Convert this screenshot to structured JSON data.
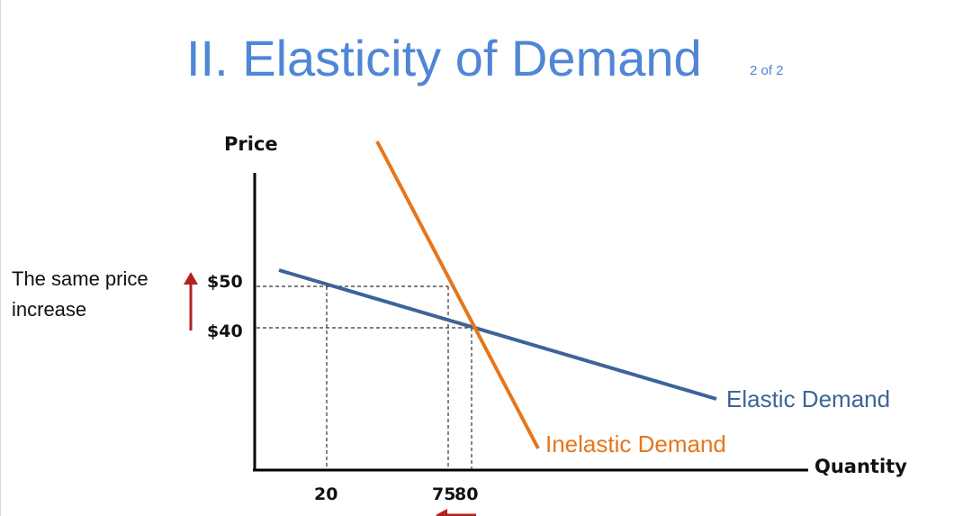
{
  "slide": {
    "title": "II. Elasticity of Demand",
    "subtitle": "2 of 2",
    "note_line1": "The same price",
    "note_line2": "increase"
  },
  "colors": {
    "title": "#4f86d6",
    "elastic": "#3d6499",
    "inelastic": "#e6761b",
    "arrow": "#b22222",
    "axis": "#000000"
  },
  "chart_data": {
    "type": "line",
    "xlabel": "Quantity",
    "ylabel": "Price",
    "x_ticks": [
      "20",
      "75",
      "80"
    ],
    "y_ticks": [
      "$50",
      "$40"
    ],
    "series": [
      {
        "name": "Elastic Demand",
        "points": [
          {
            "x": 20,
            "y": 50
          },
          {
            "x": 80,
            "y": 40
          }
        ]
      },
      {
        "name": "Inelastic Demand",
        "points": [
          {
            "x": 75,
            "y": 50
          },
          {
            "x": 80,
            "y": 40
          }
        ]
      }
    ],
    "annotations": [
      "The same price increase",
      "up arrow between $40 and $50",
      "left arrow below quantity axis"
    ]
  }
}
